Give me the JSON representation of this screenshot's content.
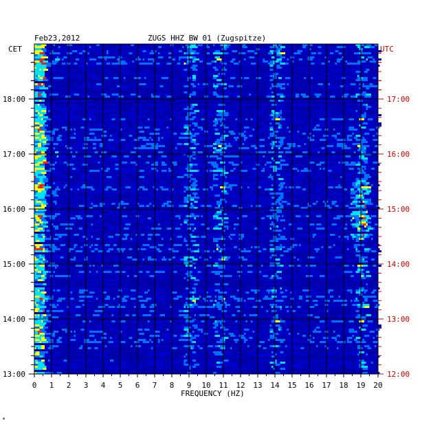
{
  "header": {
    "date": "Feb23,2012",
    "station": "ZUGS HHZ BW 01 (Zugspitze)",
    "left_zone": "CET",
    "right_zone": "UTC"
  },
  "footer_mark": "*",
  "chart_data": {
    "type": "heatmap",
    "title": "ZUGS HHZ BW 01 (Zugspitze)",
    "date": "Feb23,2012",
    "xlabel": "FREQUENCY (HZ)",
    "xlim": [
      0,
      20
    ],
    "x_ticks": [
      "0",
      "1",
      "2",
      "3",
      "4",
      "5",
      "6",
      "7",
      "8",
      "9",
      "10",
      "11",
      "12",
      "13",
      "14",
      "15",
      "16",
      "17",
      "18",
      "19",
      "20"
    ],
    "ylim_cet": [
      "13:00",
      "19:00"
    ],
    "y_ticks_cet": [
      "13:00",
      "14:00",
      "15:00",
      "16:00",
      "17:00",
      "18:00"
    ],
    "y_ticks_utc": [
      "12:00",
      "13:00",
      "14:00",
      "15:00",
      "16:00",
      "17:00"
    ],
    "grid": true,
    "colors": {
      "background": "#0000aa",
      "low": "#0000cc",
      "mid": "#0070ff",
      "high": "#00e0ff",
      "peak": "#ffff00",
      "max": "#ff2000",
      "utc_labels": "#cc0000"
    },
    "features": [
      {
        "label": "low-frequency energy",
        "freq_range_hz": [
          0,
          0.6
        ]
      },
      {
        "label": "line near 9 Hz",
        "freq_hz": 9.0
      },
      {
        "label": "band near 10.7 Hz",
        "freq_hz": 10.7
      },
      {
        "label": "band near 14 Hz",
        "freq_hz": 14.0
      },
      {
        "label": "band near 19 Hz",
        "freq_hz": 19.0
      }
    ]
  }
}
